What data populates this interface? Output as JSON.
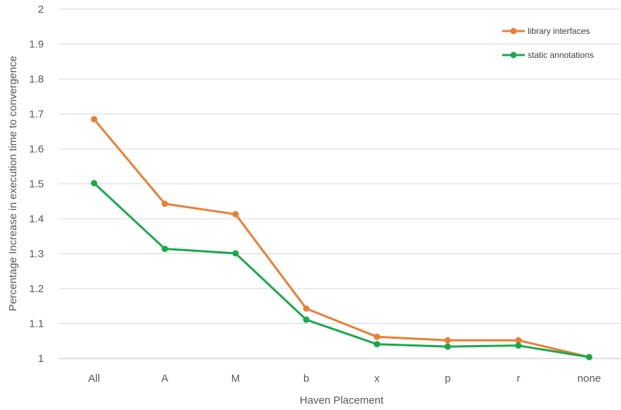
{
  "chart_data": {
    "type": "line",
    "title": "",
    "xlabel": "Haven Placement",
    "ylabel": "Percentage Increase in execution time to convergence",
    "categories": [
      "All",
      "A",
      "M",
      "b",
      "x",
      "p",
      "r",
      "none"
    ],
    "ylim": [
      1,
      2
    ],
    "yticks": [
      "1",
      "1.1",
      "1.2",
      "1.3",
      "1.4",
      "1.5",
      "1.6",
      "1.7",
      "1.8",
      "1.9",
      "2"
    ],
    "grid": true,
    "legend_position": "top-right",
    "series": [
      {
        "name": "library interfaces",
        "color": "#ED7D31",
        "values": [
          1.685,
          1.443,
          1.413,
          1.143,
          1.062,
          1.052,
          1.052,
          1.004
        ]
      },
      {
        "name": "static annotations",
        "color": "#19A94A",
        "values": [
          1.502,
          1.314,
          1.301,
          1.111,
          1.041,
          1.034,
          1.037,
          1.004
        ]
      }
    ]
  }
}
